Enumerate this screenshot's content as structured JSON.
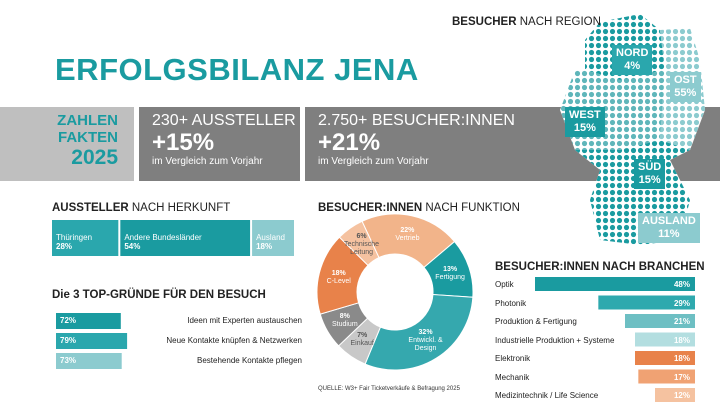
{
  "header": {
    "title": "ERFOLGSBILANZ JENA"
  },
  "banner": {
    "label_lines": [
      "ZAHLEN",
      "FAKTEN",
      "2025"
    ],
    "stats": [
      {
        "headline": "230+ AUSSTELLER",
        "value": "+15%",
        "note": "im Vergleich zum Vorjahr"
      },
      {
        "headline": "2.750+ BESUCHER:INNEN",
        "value": "+21%",
        "note": "im Vergleich zum Vorjahr"
      }
    ]
  },
  "region": {
    "title": [
      "BESUCHER",
      "NACH REGION"
    ],
    "regions": [
      {
        "name": "NORD",
        "value": "4%"
      },
      {
        "name": "OST",
        "value": "55%"
      },
      {
        "name": "WEST",
        "value": "15%"
      },
      {
        "name": "SÜD",
        "value": "15%"
      },
      {
        "name": "AUSLAND",
        "value": "11%"
      }
    ]
  },
  "source": "QUELLE: W3+ Fair Ticketverkäufe & Befragung 2025",
  "chart_data": [
    {
      "type": "stacked_bar",
      "title": [
        "AUSSTELLER",
        "NACH HERKUNFT"
      ],
      "categories": [
        "Thüringen",
        "Andere Bundesländer",
        "Ausland"
      ],
      "values": [
        28,
        54,
        18
      ],
      "value_labels": [
        "28%",
        "54%",
        "18%"
      ],
      "colors": [
        "#2aa7ad",
        "#1a9ba0",
        "#8ccbcf"
      ]
    },
    {
      "type": "donut",
      "title": [
        "BESUCHER:INNEN",
        "NACH FUNKTION"
      ],
      "categories": [
        "Vertrieb",
        "Fertigung",
        "Entwickl. & Design",
        "Einkauf",
        "Studium",
        "C-Level",
        "Technische Leitung"
      ],
      "values": [
        22,
        13,
        32,
        7,
        8,
        18,
        6
      ],
      "value_labels": [
        "22%",
        "13%",
        "32%",
        "7%",
        "8%",
        "18%",
        "6%"
      ],
      "colors": [
        "#f2b48a",
        "#1a9ba0",
        "#35a8ae",
        "#c8c8c8",
        "#8a8a8a",
        "#e8824a",
        "#f5c2a0"
      ]
    },
    {
      "type": "bar",
      "title": "Die 3 TOP-GRÜNDE FÜR DEN BESUCH",
      "categories": [
        "Ideen mit Experten austauschen",
        "Neue Kontakte knüpfen & Netzwerken",
        "Bestehende Kontakte pflegen"
      ],
      "values": [
        72,
        79,
        73
      ],
      "value_labels": [
        "72%",
        "79%",
        "73%"
      ],
      "colors": [
        "#1a9ba0",
        "#2aa7ad",
        "#8ccbcf"
      ]
    },
    {
      "type": "bar",
      "title": "BESUCHER:INNEN NACH BRANCHEN",
      "categories": [
        "Optik",
        "Photonik",
        "Produktion & Fertigung",
        "Industrielle Produktion + Systeme",
        "Elektronik",
        "Mechanik",
        "Medizintechnik / Life Science"
      ],
      "values": [
        48,
        29,
        21,
        18,
        18,
        17,
        12
      ],
      "value_labels": [
        "48%",
        "29%",
        "21%",
        "18%",
        "18%",
        "17%",
        "12%"
      ],
      "colors": [
        "#1a9ba0",
        "#2ea9ae",
        "#6dbfc3",
        "#b3dee0",
        "#e8824a",
        "#f0a273",
        "#f5c2a0"
      ]
    }
  ]
}
